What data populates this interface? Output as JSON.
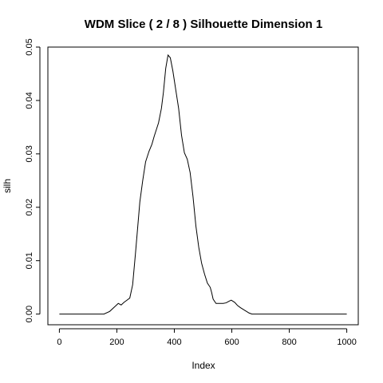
{
  "chart_data": {
    "type": "line",
    "title": "WDM Slice ( 2 / 8 )  Silhouette Dimension 1",
    "xlabel": "Index",
    "ylabel": "silh",
    "xlim": [
      -40,
      1040
    ],
    "ylim": [
      -0.002,
      0.05
    ],
    "xticks": [
      0,
      200,
      400,
      600,
      800,
      1000
    ],
    "yticks": [
      0.0,
      0.01,
      0.02,
      0.03,
      0.04,
      0.05
    ],
    "xtick_labels": [
      "0",
      "200",
      "400",
      "600",
      "800",
      "1000"
    ],
    "ytick_labels": [
      "0.00",
      "0.01",
      "0.02",
      "0.03",
      "0.04",
      "0.05"
    ],
    "grid": false,
    "series": [
      {
        "color": "#000000",
        "x": [
          0,
          155,
          175,
          195,
          205,
          215,
          225,
          235,
          245,
          255,
          265,
          280,
          290,
          300,
          312,
          322,
          330,
          345,
          355,
          362,
          370,
          378,
          386,
          395,
          405,
          415,
          425,
          435,
          445,
          455,
          465,
          475,
          485,
          495,
          505,
          515,
          525,
          530,
          535,
          545,
          560,
          570,
          580,
          590,
          598,
          610,
          620,
          630,
          645,
          660,
          670,
          700,
          800,
          1000
        ],
        "y": [
          0.0,
          0.0,
          0.0005,
          0.0015,
          0.002,
          0.0017,
          0.0022,
          0.0026,
          0.003,
          0.0055,
          0.0115,
          0.021,
          0.025,
          0.0285,
          0.0305,
          0.0318,
          0.0333,
          0.0358,
          0.0385,
          0.0415,
          0.046,
          0.0485,
          0.048,
          0.0455,
          0.042,
          0.0385,
          0.0335,
          0.0302,
          0.029,
          0.0265,
          0.022,
          0.0165,
          0.0125,
          0.0095,
          0.0075,
          0.0058,
          0.005,
          0.004,
          0.0028,
          0.002,
          0.002,
          0.002,
          0.0021,
          0.0024,
          0.0026,
          0.0022,
          0.0016,
          0.0012,
          0.0007,
          0.0002,
          0.0,
          0.0,
          0.0,
          0.0
        ]
      }
    ]
  }
}
